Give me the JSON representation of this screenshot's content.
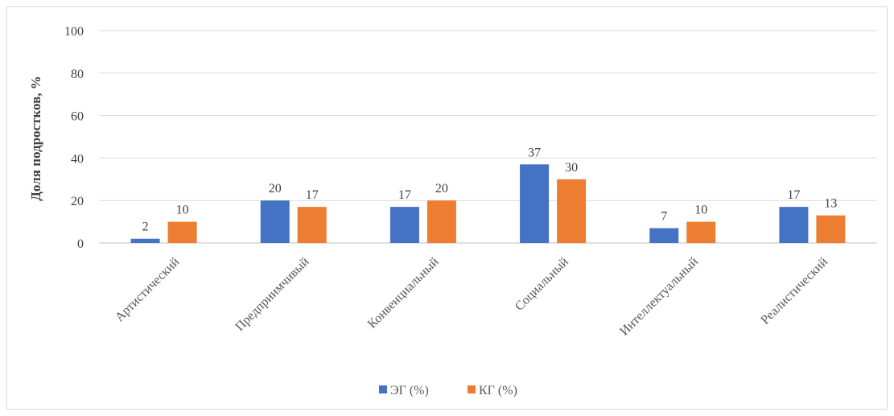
{
  "chart_data": {
    "type": "bar",
    "title": "",
    "xlabel": "",
    "ylabel": "Доля подростков, %",
    "ylim": [
      0,
      100
    ],
    "yticks": [
      0,
      20,
      40,
      60,
      80,
      100
    ],
    "grid": true,
    "legend_position": "bottom",
    "categories": [
      "Артистический",
      "Предприимчивый",
      "Конвенциальный",
      "Социальный",
      "Интеллектуальный",
      "Реалистический"
    ],
    "series": [
      {
        "name": "ЭГ (%)",
        "color": "#4472c4",
        "values": [
          2,
          20,
          17,
          37,
          7,
          17
        ]
      },
      {
        "name": "КГ (%)",
        "color": "#ed7d31",
        "values": [
          10,
          17,
          20,
          30,
          10,
          13
        ]
      }
    ]
  }
}
